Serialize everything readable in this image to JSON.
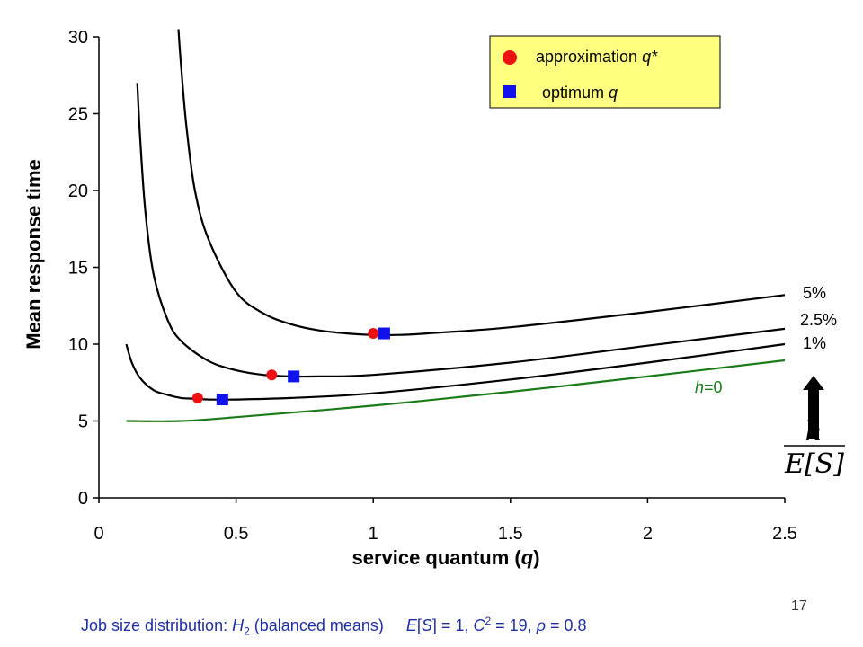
{
  "chart_data": {
    "type": "line",
    "xlabel_prefix": "service quantum (",
    "xlabel_var": "q",
    "xlabel_suffix": ")",
    "ylabel": "Mean response time",
    "xlim": [
      0,
      2.5
    ],
    "ylim": [
      0,
      30
    ],
    "x_ticks": [
      "0",
      "0.5",
      "1",
      "1.5",
      "2",
      "2.5"
    ],
    "y_ticks": [
      "0",
      "5",
      "10",
      "15",
      "20",
      "25",
      "30"
    ],
    "grid": false,
    "series": [
      {
        "name": "5%",
        "color": "#000000",
        "points": [
          [
            0.29,
            30.5
          ],
          [
            0.3,
            28.0
          ],
          [
            0.32,
            24.0
          ],
          [
            0.35,
            20.0
          ],
          [
            0.4,
            16.8
          ],
          [
            0.5,
            13.4
          ],
          [
            0.6,
            12.0
          ],
          [
            0.7,
            11.3
          ],
          [
            0.8,
            10.9
          ],
          [
            0.9,
            10.7
          ],
          [
            1.0,
            10.6
          ],
          [
            1.1,
            10.6
          ],
          [
            1.2,
            10.7
          ],
          [
            1.5,
            11.1
          ],
          [
            2.0,
            12.1
          ],
          [
            2.5,
            13.2
          ]
        ]
      },
      {
        "name": "2.5%",
        "color": "#000000",
        "points": [
          [
            0.14,
            27.0
          ],
          [
            0.15,
            23.5
          ],
          [
            0.17,
            18.5
          ],
          [
            0.2,
            14.5
          ],
          [
            0.25,
            11.6
          ],
          [
            0.3,
            10.2
          ],
          [
            0.4,
            8.9
          ],
          [
            0.5,
            8.3
          ],
          [
            0.6,
            8.0
          ],
          [
            0.7,
            7.9
          ],
          [
            0.8,
            7.9
          ],
          [
            1.0,
            8.0
          ],
          [
            1.5,
            8.8
          ],
          [
            2.0,
            9.9
          ],
          [
            2.5,
            11.0
          ]
        ]
      },
      {
        "name": "1%",
        "color": "#000000",
        "points": [
          [
            0.1,
            10.0
          ],
          [
            0.12,
            8.8
          ],
          [
            0.15,
            7.8
          ],
          [
            0.2,
            7.0
          ],
          [
            0.25,
            6.7
          ],
          [
            0.3,
            6.5
          ],
          [
            0.35,
            6.45
          ],
          [
            0.4,
            6.4
          ],
          [
            0.5,
            6.4
          ],
          [
            0.7,
            6.5
          ],
          [
            1.0,
            6.8
          ],
          [
            1.5,
            7.7
          ],
          [
            2.0,
            8.8
          ],
          [
            2.5,
            10.0
          ]
        ]
      },
      {
        "name": "h=0",
        "color": "#1a7a1a",
        "points": [
          [
            0.1,
            5.0
          ],
          [
            0.3,
            5.0
          ],
          [
            0.5,
            5.25
          ],
          [
            1.0,
            6.0
          ],
          [
            1.5,
            6.9
          ],
          [
            2.0,
            7.9
          ],
          [
            2.5,
            8.95
          ]
        ]
      }
    ],
    "curve_labels": [
      "5%",
      "2.5%",
      "1%"
    ],
    "h0_label": {
      "italic": "h",
      "rest": "=0"
    },
    "approximation_q_star": [
      [
        0.36,
        6.5
      ],
      [
        0.63,
        8.0
      ],
      [
        1.0,
        10.7
      ]
    ],
    "optimum_q": [
      [
        0.45,
        6.4
      ],
      [
        0.71,
        7.9
      ],
      [
        1.04,
        10.7
      ]
    ],
    "approx_color": "#ee1111",
    "optimum_color": "#1111ee",
    "legend": {
      "placement": "top-right",
      "background": "#ffff80",
      "entries": [
        {
          "marker": "circle",
          "label": "approximation ",
          "label_italic": "q*"
        },
        {
          "marker": "square",
          "label": "optimum ",
          "label_italic": "q"
        }
      ]
    },
    "annotation": {
      "arrow": "up-arrow",
      "fraction_numerator": "h",
      "fraction_denominator": "E[S]"
    }
  },
  "caption": {
    "p1": "Job size distribution: ",
    "h": "H",
    "h_sub": "2",
    "p2": " (balanced means)     ",
    "e": "E",
    "p3": "[",
    "s": "S",
    "p4": "] = 1, ",
    "c": "C",
    "c_sup": "2",
    "p5": " = 19, ",
    "rho": "ρ",
    "p6": " = 0.8"
  },
  "page_number": "17"
}
